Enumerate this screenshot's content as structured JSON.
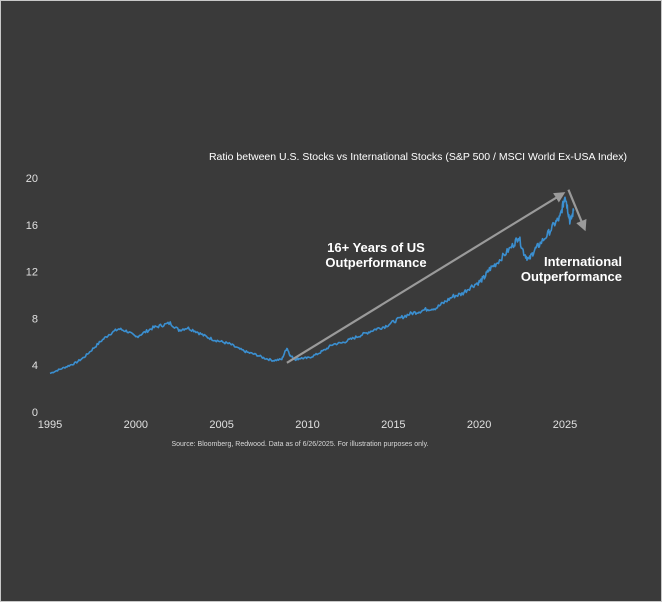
{
  "chart_data": {
    "type": "line",
    "title": "Ratio between U.S. Stocks vs International Stocks (S&P 500 / MSCI World Ex-USA Index)",
    "source": "Source: Bloomberg, Redwood. Data as of 6/26/2025. For illustration purposes only.",
    "xlabel": "",
    "ylabel": "",
    "xlim": [
      1995,
      2026.4
    ],
    "ylim": [
      0,
      20
    ],
    "x_ticks": [
      "1995",
      "2000",
      "2005",
      "2010",
      "2015",
      "2020",
      "2025"
    ],
    "y_ticks": [
      "0",
      "4",
      "8",
      "12",
      "16",
      "20"
    ],
    "grid": false,
    "line_color": "#3b8fd0",
    "annotation_color": "#9a9a9a",
    "series": [
      {
        "x": [
          1995.0,
          1995.5,
          1996.0,
          1996.5,
          1997.0,
          1997.5,
          1998.0,
          1998.5,
          1999.0,
          1999.5,
          2000.0,
          2000.5,
          2001.0,
          2001.5,
          2002.0,
          2002.5,
          2003.0,
          2003.5,
          2004.0,
          2004.5,
          2005.0,
          2005.5,
          2006.0,
          2006.5,
          2007.0,
          2007.5,
          2008.0,
          2008.5,
          2008.8,
          2009.0,
          2009.3,
          2009.6,
          2010.0,
          2010.5,
          2011.0,
          2011.5,
          2012.0,
          2012.5,
          2013.0,
          2013.5,
          2014.0,
          2014.5,
          2015.0,
          2015.5,
          2016.0,
          2016.5,
          2017.0,
          2017.5,
          2018.0,
          2018.5,
          2019.0,
          2019.5,
          2020.0,
          2020.3,
          2020.6,
          2021.0,
          2021.5,
          2022.0,
          2022.3,
          2022.6,
          2022.9,
          2023.2,
          2023.5,
          2024.0,
          2024.4,
          2024.7,
          2024.9,
          2025.0,
          2025.15,
          2025.3,
          2025.5
        ],
        "y": [
          3.3,
          3.6,
          3.9,
          4.2,
          4.7,
          5.4,
          6.1,
          6.7,
          7.1,
          6.9,
          6.4,
          6.8,
          7.2,
          7.4,
          7.6,
          7.0,
          7.2,
          6.9,
          6.5,
          6.2,
          6.0,
          5.8,
          5.4,
          5.1,
          4.9,
          4.6,
          4.4,
          4.5,
          5.5,
          4.8,
          4.5,
          4.6,
          4.6,
          4.9,
          5.3,
          5.8,
          5.9,
          6.2,
          6.5,
          6.8,
          7.1,
          7.3,
          7.7,
          8.1,
          8.4,
          8.6,
          8.8,
          8.9,
          9.4,
          9.9,
          10.1,
          10.7,
          11.1,
          11.5,
          12.2,
          12.7,
          13.5,
          14.3,
          15.0,
          13.6,
          13.0,
          13.8,
          14.3,
          15.2,
          16.1,
          16.6,
          17.8,
          18.6,
          17.4,
          16.2,
          17.2
        ]
      }
    ],
    "annotations": [
      {
        "text": [
          "16+ Years of US",
          "Outperformance"
        ],
        "arrow_from": [
          2008.8,
          4.2
        ],
        "arrow_to": [
          2024.8,
          18.6
        ]
      },
      {
        "text": [
          "International",
          "Outperformance"
        ],
        "arrow_from": [
          2025.2,
          19.0
        ],
        "arrow_to": [
          2026.1,
          15.8
        ]
      }
    ]
  }
}
